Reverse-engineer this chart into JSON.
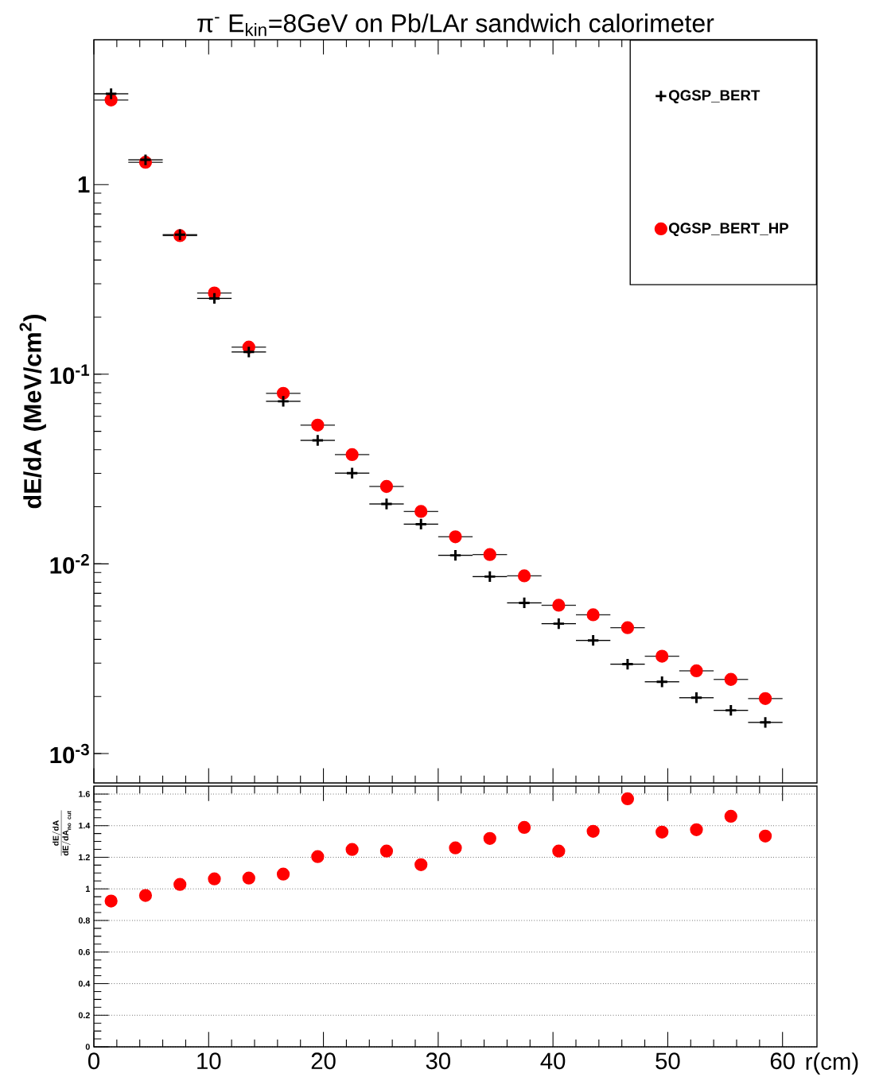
{
  "chart_data": [
    {
      "type": "scatter",
      "title": "π$^{-}$ E$_{kin}$=8GeV on Pb/LAr sandwich calorimeter",
      "ylabel": "dE/dA (MeV/cm$^{2}$)",
      "x": [
        1.5,
        4.5,
        7.5,
        10.5,
        13.5,
        16.5,
        19.5,
        22.5,
        25.5,
        28.5,
        31.5,
        34.5,
        37.5,
        40.5,
        43.5,
        46.5,
        49.5,
        52.5,
        55.5,
        58.5
      ],
      "xlim": [
        0,
        63
      ],
      "xticks": [
        {
          "value": 0,
          "label": null
        },
        {
          "value": 10,
          "label": null
        },
        {
          "value": 20,
          "label": null
        },
        {
          "value": 30,
          "label": null
        },
        {
          "value": 40,
          "label": null
        },
        {
          "value": 50,
          "label": null
        },
        {
          "value": 60,
          "label": null
        }
      ],
      "ylim": [
        0.0007,
        5.8
      ],
      "yticks": [
        {
          "value": 0.001,
          "label": "10$^{-3}$"
        },
        {
          "value": 0.01,
          "label": "10$^{-2}$"
        },
        {
          "value": 0.1,
          "label": "10$^{-1}$"
        },
        1
      ],
      "log": true,
      "legend": "top right",
      "tick_labels": "y",
      "series": [
        {
          "name": "QGSP_BERT",
          "color": "#000000",
          "marker": "cross",
          "values": [
            3.01,
            1.35,
            0.544,
            0.251,
            0.131,
            0.072,
            0.0448,
            0.0301,
            0.0207,
            0.0162,
            0.0111,
            0.00857,
            0.00623,
            0.00484,
            0.00395,
            0.00296,
            0.00239,
            0.00197,
            0.00169,
            0.00146
          ],
          "xerrors": [
            1.5,
            1.5,
            1.5,
            1.5,
            1.5,
            1.5,
            1.5,
            1.5,
            1.5,
            1.5,
            1.5,
            1.5,
            1.5,
            1.5,
            1.5,
            1.5,
            1.5,
            1.5,
            1.5,
            1.5
          ]
        },
        {
          "name": "QGSP_BERT_HP",
          "color": "#ff0000",
          "marker": "circle",
          "values": [
            2.79,
            1.31,
            0.538,
            0.268,
            0.139,
            0.0793,
            0.0539,
            0.0377,
            0.0256,
            0.0189,
            0.0139,
            0.0112,
            0.00865,
            0.00605,
            0.00539,
            0.00461,
            0.00326,
            0.00273,
            0.00246,
            0.00195
          ],
          "xerrors": [
            1.5,
            1.5,
            1.5,
            1.5,
            1.5,
            1.5,
            1.5,
            1.5,
            1.5,
            1.5,
            1.5,
            1.5,
            1.5,
            1.5,
            1.5,
            1.5,
            1.5,
            1.5,
            1.5,
            1.5
          ]
        }
      ]
    },
    {
      "type": "scatter",
      "ylabel": "\\frac{\\mathbf{dE/dA}}{\\mathbf{dE/dA}_{\\mathbf{no\\ cut}}}",
      "xlabel": "r(cm)",
      "x": [
        1.5,
        4.5,
        7.5,
        10.5,
        13.5,
        16.5,
        19.5,
        22.5,
        25.5,
        28.5,
        31.5,
        34.5,
        37.5,
        40.5,
        43.5,
        46.5,
        49.5,
        52.5,
        55.5,
        58.5
      ],
      "xlim": [
        0,
        63
      ],
      "xticks": [
        0,
        10,
        20,
        30,
        40,
        50,
        60
      ],
      "ylim": [
        0,
        1.65
      ],
      "yticks": [
        0,
        0.2,
        0.4,
        0.6,
        0.8,
        1,
        1.2,
        1.4,
        1.6
      ],
      "grid": "y",
      "series": [
        {
          "color": "#ff0000",
          "marker": "circle",
          "values": [
            0.923,
            0.958,
            1.028,
            1.063,
            1.068,
            1.093,
            1.204,
            1.249,
            1.239,
            1.153,
            1.259,
            1.319,
            1.389,
            1.239,
            1.364,
            1.57,
            1.359,
            1.374,
            1.459,
            1.334
          ]
        }
      ]
    }
  ]
}
